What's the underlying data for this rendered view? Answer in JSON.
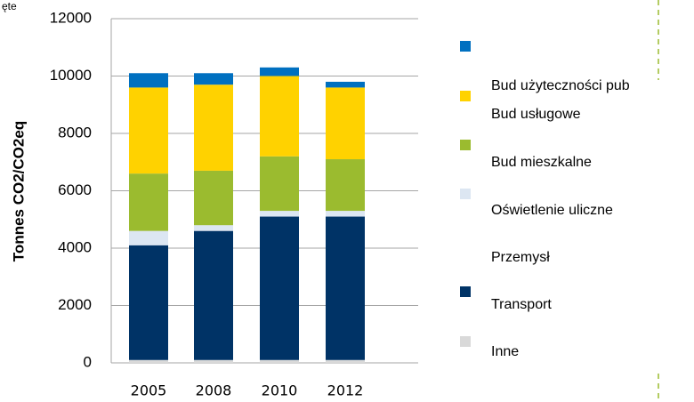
{
  "corner_text": "ęte",
  "chart_data": {
    "type": "bar",
    "stacked": true,
    "y_label": "Tonnes CO2/CO2eq",
    "categories": [
      "2005",
      "2008",
      "2010",
      "2012"
    ],
    "ylim": [
      0,
      12000
    ],
    "yticks": [
      0,
      2000,
      4000,
      6000,
      8000,
      10000,
      12000
    ],
    "grid": true,
    "legend": "right",
    "series": [
      {
        "name": "Inne",
        "color": "#d9d9d9",
        "values": [
          100,
          100,
          100,
          100
        ]
      },
      {
        "name": "Transport",
        "color": "#003366",
        "values": [
          4000,
          4500,
          5000,
          5000
        ]
      },
      {
        "name": "Przemysł",
        "color": "#ffffff",
        "values": [
          0,
          0,
          0,
          0
        ]
      },
      {
        "name": "Oświetlenie uliczne",
        "color": "#dce6f2",
        "values": [
          500,
          200,
          200,
          200
        ]
      },
      {
        "name": "Bud mieszkalne",
        "color": "#9bbb2f",
        "values": [
          2000,
          1900,
          1900,
          1800
        ]
      },
      {
        "name": "Bud usługowe",
        "color": "#ffd200",
        "values": [
          3000,
          3000,
          2800,
          2500
        ]
      },
      {
        "name": "Bud użyteczności pub",
        "color": "#0070c0",
        "values": [
          500,
          400,
          300,
          200
        ]
      }
    ]
  }
}
